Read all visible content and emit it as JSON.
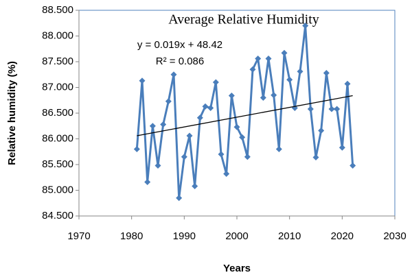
{
  "chart_data": {
    "type": "line",
    "title": "Average Relative Humidity",
    "xlabel": "Years",
    "ylabel": "Relative humidity (%)",
    "x": [
      1981,
      1982,
      1983,
      1984,
      1985,
      1986,
      1987,
      1988,
      1989,
      1990,
      1991,
      1992,
      1993,
      1994,
      1995,
      1996,
      1997,
      1998,
      1999,
      2000,
      2001,
      2002,
      2003,
      2004,
      2005,
      2006,
      2007,
      2008,
      2009,
      2010,
      2011,
      2012,
      2013,
      2014,
      2015,
      2016,
      2017,
      2018,
      2019,
      2020,
      2021,
      2022
    ],
    "series": [
      {
        "color": "#4a7ebb",
        "values": [
          85.8,
          87.13,
          85.16,
          86.25,
          85.48,
          86.28,
          86.73,
          87.25,
          84.85,
          85.65,
          86.06,
          85.08,
          86.41,
          86.63,
          86.6,
          87.1,
          85.7,
          85.32,
          86.84,
          86.23,
          86.03,
          85.65,
          87.35,
          87.56,
          86.8,
          87.56,
          86.85,
          85.8,
          87.67,
          87.15,
          86.6,
          87.31,
          88.2,
          86.58,
          85.64,
          86.16,
          87.28,
          86.58,
          86.58,
          85.83,
          87.07,
          85.48
        ]
      }
    ],
    "trendline": {
      "x": [
        1981,
        2022
      ],
      "values": [
        86.06,
        86.84
      ],
      "color": "#000000"
    },
    "annotations": [
      "y = 0.019x + 48.42",
      "R² = 0.086"
    ],
    "xlim": [
      1970,
      2030
    ],
    "xticks": [
      1970,
      1980,
      1990,
      2000,
      2010,
      2020,
      2030
    ],
    "ylim": [
      84.5,
      88.5
    ],
    "yticks": [
      {
        "value": 84.5,
        "label": "84.500"
      },
      {
        "value": 85,
        "label": "85.000"
      },
      {
        "value": 85.5,
        "label": "85.500"
      },
      {
        "value": 86,
        "label": "86.000"
      },
      {
        "value": 86.5,
        "label": "86.500"
      },
      {
        "value": 87,
        "label": "87.000"
      },
      {
        "value": 87.5,
        "label": "87.500"
      },
      {
        "value": 88,
        "label": "88.000"
      },
      {
        "value": 88.5,
        "label": "88.500"
      }
    ]
  }
}
